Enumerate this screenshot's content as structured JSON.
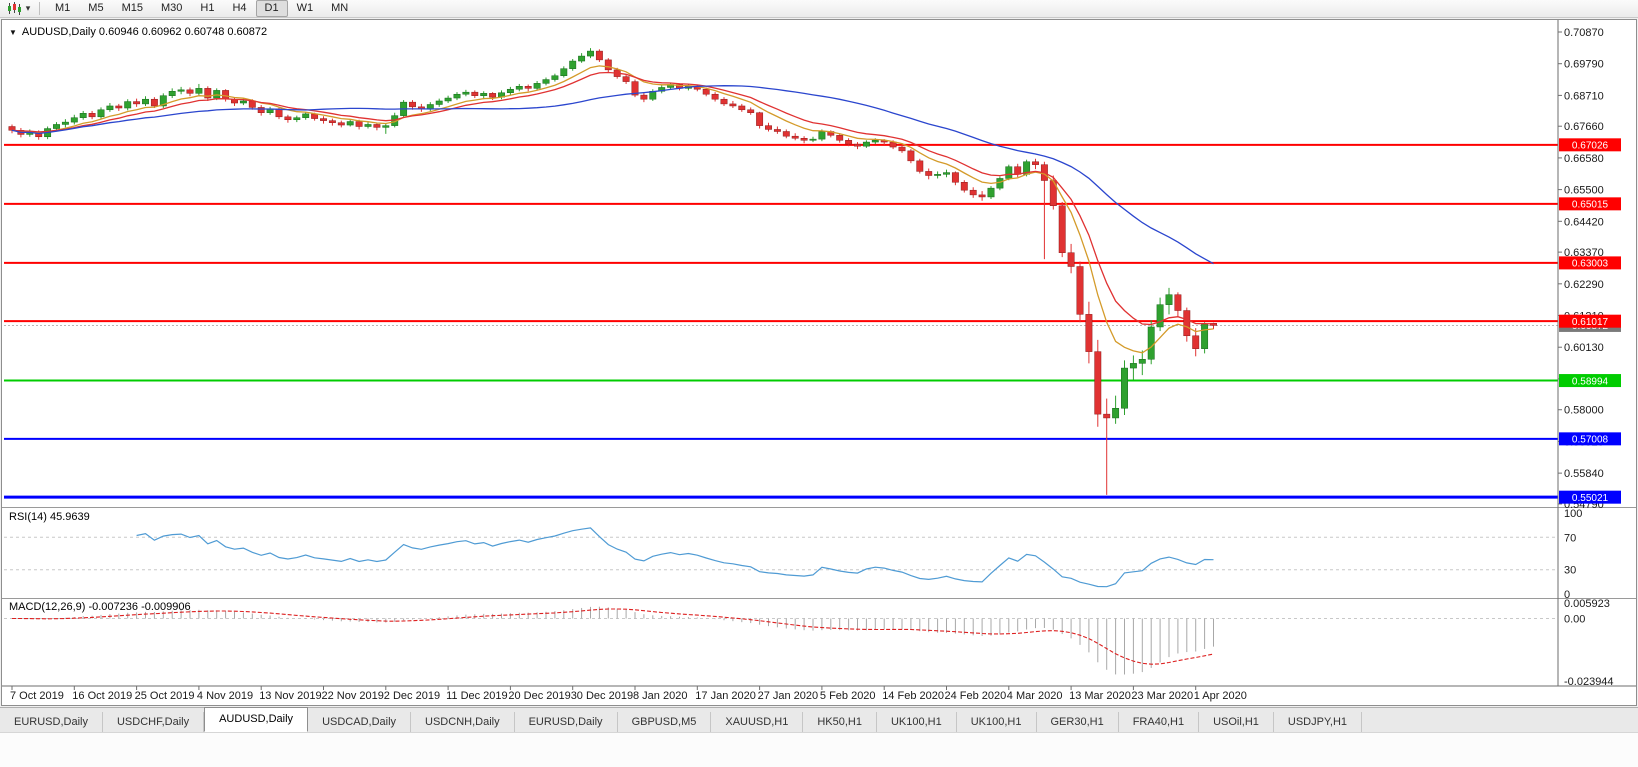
{
  "toolbar": {
    "timeframes": [
      "M1",
      "M5",
      "M15",
      "M30",
      "H1",
      "H4",
      "D1",
      "W1",
      "MN"
    ],
    "active": "D1"
  },
  "tabs": {
    "active_index": 2,
    "items": [
      "EURUSD,Daily",
      "USDCHF,Daily",
      "AUDUSD,Daily",
      "USDCAD,Daily",
      "USDCNH,Daily",
      "EURUSD,Daily",
      "GBPUSD,M5",
      "XAUUSD,H1",
      "HK50,H1",
      "UK100,H1",
      "UK100,H1",
      "GER30,H1",
      "FRA40,H1",
      "USOil,H1",
      "USDJPY,H1"
    ]
  },
  "chart_data": {
    "type": "candlestick",
    "symbol": "AUDUSD",
    "timeframe": "Daily",
    "title_line": "AUDUSD,Daily 0.60946 0.60962 0.60748 0.60872",
    "open": "0.60946",
    "high": "0.60962",
    "low": "0.60748",
    "close": "0.60872",
    "current_price": "0.60872",
    "colors": {
      "bull": "#2FA12F",
      "bear": "#E03232",
      "background": "#FFFFFF",
      "axis_text": "#1A1A1A"
    },
    "price_ticks": [
      "0.70870",
      "0.69790",
      "0.68710",
      "0.67660",
      "0.66580",
      "0.65500",
      "0.64420",
      "0.63370",
      "0.62290",
      "0.61210",
      "0.60130",
      "0.59050",
      "0.58000",
      "0.56920",
      "0.55840",
      "0.54790"
    ],
    "level_lines": [
      {
        "price": 0.67026,
        "label": "0.67026",
        "color": "#FF0000",
        "width": 2
      },
      {
        "price": 0.65015,
        "label": "0.65015",
        "color": "#FF0000",
        "width": 2
      },
      {
        "price": 0.63003,
        "label": "0.63003",
        "color": "#FF0000",
        "width": 2
      },
      {
        "price": 0.61017,
        "label": "0.61017",
        "color": "#FF0000",
        "width": 2
      },
      {
        "price": 0.58994,
        "label": "0.58994",
        "color": "#00CC00",
        "width": 2
      },
      {
        "price": 0.57008,
        "label": "0.57008",
        "color": "#0000FF",
        "width": 2
      },
      {
        "price": 0.55021,
        "label": "0.55021",
        "color": "#0000FF",
        "width": 3
      }
    ],
    "moving_averages": [
      {
        "period": 8,
        "method": "ema",
        "color": "#D49B2A"
      },
      {
        "period": 13,
        "method": "ema",
        "color": "#E03232"
      },
      {
        "period": 34,
        "method": "sma",
        "color": "#2B46CE"
      }
    ],
    "date_labels": [
      {
        "i": 0,
        "label": "7 Oct 2019"
      },
      {
        "i": 7,
        "label": "16 Oct 2019"
      },
      {
        "i": 14,
        "label": "25 Oct 2019"
      },
      {
        "i": 21,
        "label": "4 Nov 2019"
      },
      {
        "i": 28,
        "label": "13 Nov 2019"
      },
      {
        "i": 35,
        "label": "22 Nov 2019"
      },
      {
        "i": 42,
        "label": "2 Dec 2019"
      },
      {
        "i": 49,
        "label": "11 Dec 2019"
      },
      {
        "i": 56,
        "label": "20 Dec 2019"
      },
      {
        "i": 63,
        "label": "30 Dec 2019"
      },
      {
        "i": 70,
        "label": "8 Jan 2020"
      },
      {
        "i": 77,
        "label": "17 Jan 2020"
      },
      {
        "i": 84,
        "label": "27 Jan 2020"
      },
      {
        "i": 91,
        "label": "5 Feb 2020"
      },
      {
        "i": 98,
        "label": "14 Feb 2020"
      },
      {
        "i": 105,
        "label": "24 Feb 2020"
      },
      {
        "i": 112,
        "label": "4 Mar 2020"
      },
      {
        "i": 119,
        "label": "13 Mar 2020"
      },
      {
        "i": 126,
        "label": "23 Mar 2020"
      },
      {
        "i": 133,
        "label": "1 Apr 2020"
      }
    ],
    "rsi": {
      "label_text": "RSI(14) 45.9639",
      "period": 14,
      "levels": [
        70,
        30
      ],
      "axis_labels": [
        {
          "v": 100,
          "t": "100"
        },
        {
          "v": 70,
          "t": "70"
        },
        {
          "v": 30,
          "t": "30"
        },
        {
          "v": 0,
          "t": "0"
        }
      ],
      "color": "#4F9BD4",
      "range": [
        0,
        100
      ]
    },
    "macd": {
      "label_text": "MACD(12,26,9) -0.007236 -0.009906",
      "fast": 12,
      "slow": 26,
      "signal": 9,
      "max": 0.005923,
      "min": -0.023944,
      "axis_labels": [
        {
          "v": 0.005923,
          "t": "0.005923"
        },
        {
          "v": 0,
          "t": "0.00"
        },
        {
          "v": -0.023944,
          "t": "-0.023944"
        }
      ],
      "hist_color": "#A8A8A8",
      "signal_color": "#DD2020"
    },
    "candles": [
      [
        0.6765,
        0.6772,
        0.6742,
        0.6752
      ],
      [
        0.6752,
        0.676,
        0.6728,
        0.6738
      ],
      [
        0.6738,
        0.6755,
        0.673,
        0.6745
      ],
      [
        0.6745,
        0.6752,
        0.672,
        0.673
      ],
      [
        0.673,
        0.6765,
        0.6722,
        0.6758
      ],
      [
        0.6758,
        0.678,
        0.675,
        0.6772
      ],
      [
        0.6772,
        0.679,
        0.6762,
        0.678
      ],
      [
        0.678,
        0.6805,
        0.6772,
        0.6795
      ],
      [
        0.6795,
        0.6818,
        0.6788,
        0.681
      ],
      [
        0.681,
        0.6818,
        0.679,
        0.6798
      ],
      [
        0.6798,
        0.683,
        0.6792,
        0.6822
      ],
      [
        0.6822,
        0.6845,
        0.6815,
        0.6835
      ],
      [
        0.6835,
        0.6842,
        0.6818,
        0.6828
      ],
      [
        0.6828,
        0.6858,
        0.682,
        0.685
      ],
      [
        0.685,
        0.686,
        0.6832,
        0.6842
      ],
      [
        0.6842,
        0.6868,
        0.6835,
        0.6858
      ],
      [
        0.6858,
        0.6865,
        0.6828,
        0.6835
      ],
      [
        0.6835,
        0.6878,
        0.6828,
        0.687
      ],
      [
        0.687,
        0.6895,
        0.6862,
        0.6885
      ],
      [
        0.6885,
        0.69,
        0.6875,
        0.689
      ],
      [
        0.689,
        0.6898,
        0.6868,
        0.6878
      ],
      [
        0.6878,
        0.691,
        0.687,
        0.6895
      ],
      [
        0.6895,
        0.6902,
        0.6852,
        0.6862
      ],
      [
        0.6862,
        0.6895,
        0.6855,
        0.6888
      ],
      [
        0.6888,
        0.6892,
        0.685,
        0.6858
      ],
      [
        0.6858,
        0.6865,
        0.6835,
        0.6845
      ],
      [
        0.6845,
        0.6862,
        0.6838,
        0.6852
      ],
      [
        0.6852,
        0.6858,
        0.6822,
        0.683
      ],
      [
        0.683,
        0.6838,
        0.6802,
        0.6812
      ],
      [
        0.6812,
        0.6832,
        0.6805,
        0.6825
      ],
      [
        0.6825,
        0.683,
        0.679,
        0.6798
      ],
      [
        0.6798,
        0.6805,
        0.6778,
        0.6788
      ],
      [
        0.6788,
        0.6802,
        0.678,
        0.6795
      ],
      [
        0.6795,
        0.6815,
        0.6788,
        0.6808
      ],
      [
        0.6808,
        0.6812,
        0.6785,
        0.6792
      ],
      [
        0.6792,
        0.68,
        0.6775,
        0.6785
      ],
      [
        0.6785,
        0.6792,
        0.6768,
        0.6778
      ],
      [
        0.6778,
        0.6785,
        0.6762,
        0.677
      ],
      [
        0.677,
        0.679,
        0.6765,
        0.6782
      ],
      [
        0.6782,
        0.6788,
        0.6755,
        0.6765
      ],
      [
        0.6765,
        0.678,
        0.6758,
        0.6772
      ],
      [
        0.6772,
        0.6778,
        0.6752,
        0.6762
      ],
      [
        0.6762,
        0.6775,
        0.674,
        0.6768
      ],
      [
        0.6768,
        0.6812,
        0.6762,
        0.6802
      ],
      [
        0.6802,
        0.6855,
        0.6795,
        0.6848
      ],
      [
        0.6848,
        0.6855,
        0.6822,
        0.6832
      ],
      [
        0.6832,
        0.6842,
        0.6815,
        0.6825
      ],
      [
        0.6825,
        0.6848,
        0.6818,
        0.684
      ],
      [
        0.684,
        0.686,
        0.6832,
        0.6852
      ],
      [
        0.6852,
        0.687,
        0.6845,
        0.6862
      ],
      [
        0.6862,
        0.6882,
        0.6855,
        0.6875
      ],
      [
        0.6875,
        0.689,
        0.6868,
        0.6882
      ],
      [
        0.6882,
        0.6888,
        0.6862,
        0.687
      ],
      [
        0.687,
        0.6885,
        0.6858,
        0.6878
      ],
      [
        0.6878,
        0.6882,
        0.6855,
        0.6865
      ],
      [
        0.6865,
        0.6888,
        0.6858,
        0.688
      ],
      [
        0.688,
        0.69,
        0.6872,
        0.6892
      ],
      [
        0.6892,
        0.691,
        0.6885,
        0.6902
      ],
      [
        0.6902,
        0.6908,
        0.6885,
        0.6895
      ],
      [
        0.6895,
        0.692,
        0.6888,
        0.6912
      ],
      [
        0.6912,
        0.6932,
        0.6905,
        0.6925
      ],
      [
        0.6925,
        0.6945,
        0.6918,
        0.6938
      ],
      [
        0.6938,
        0.697,
        0.6932,
        0.6962
      ],
      [
        0.6962,
        0.6995,
        0.6955,
        0.6988
      ],
      [
        0.6988,
        0.7015,
        0.6982,
        0.7005
      ],
      [
        0.7005,
        0.7032,
        0.6998,
        0.7022
      ],
      [
        0.7022,
        0.7028,
        0.6985,
        0.6992
      ],
      [
        0.6992,
        0.6998,
        0.695,
        0.6958
      ],
      [
        0.6958,
        0.6965,
        0.6928,
        0.6935
      ],
      [
        0.6935,
        0.6942,
        0.691,
        0.6918
      ],
      [
        0.6918,
        0.6925,
        0.6865,
        0.6872
      ],
      [
        0.6872,
        0.688,
        0.6848,
        0.6858
      ],
      [
        0.6858,
        0.6892,
        0.6852,
        0.6885
      ],
      [
        0.6885,
        0.6905,
        0.6878,
        0.6898
      ],
      [
        0.6898,
        0.6915,
        0.6892,
        0.6908
      ],
      [
        0.6908,
        0.6912,
        0.6888,
        0.6895
      ],
      [
        0.6895,
        0.691,
        0.6888,
        0.6902
      ],
      [
        0.6902,
        0.6908,
        0.6885,
        0.6892
      ],
      [
        0.6892,
        0.6898,
        0.6868,
        0.6875
      ],
      [
        0.6875,
        0.6882,
        0.685,
        0.6858
      ],
      [
        0.6858,
        0.6865,
        0.6835,
        0.6842
      ],
      [
        0.6842,
        0.6852,
        0.6828,
        0.6835
      ],
      [
        0.6835,
        0.6842,
        0.6815,
        0.6822
      ],
      [
        0.6822,
        0.683,
        0.6805,
        0.6812
      ],
      [
        0.6812,
        0.6815,
        0.6758,
        0.6768
      ],
      [
        0.6768,
        0.6778,
        0.6748,
        0.6755
      ],
      [
        0.6755,
        0.6765,
        0.674,
        0.6748
      ],
      [
        0.6748,
        0.6755,
        0.6725,
        0.6732
      ],
      [
        0.6732,
        0.6742,
        0.6718,
        0.6725
      ],
      [
        0.6725,
        0.6732,
        0.6708,
        0.6718
      ],
      [
        0.6718,
        0.673,
        0.6712,
        0.6722
      ],
      [
        0.6722,
        0.6755,
        0.6715,
        0.6748
      ],
      [
        0.6748,
        0.6752,
        0.6728,
        0.6735
      ],
      [
        0.6735,
        0.6742,
        0.671,
        0.6718
      ],
      [
        0.6718,
        0.6725,
        0.6698,
        0.6705
      ],
      [
        0.6705,
        0.6712,
        0.6688,
        0.6698
      ],
      [
        0.6698,
        0.6718,
        0.6692,
        0.6712
      ],
      [
        0.6712,
        0.6725,
        0.6705,
        0.6718
      ],
      [
        0.6718,
        0.6722,
        0.6702,
        0.6712
      ],
      [
        0.6712,
        0.6718,
        0.6688,
        0.6695
      ],
      [
        0.6695,
        0.6702,
        0.6675,
        0.6682
      ],
      [
        0.6682,
        0.6688,
        0.664,
        0.6648
      ],
      [
        0.6648,
        0.6655,
        0.6605,
        0.6612
      ],
      [
        0.6612,
        0.6622,
        0.6585,
        0.6598
      ],
      [
        0.6598,
        0.6612,
        0.6588,
        0.6602
      ],
      [
        0.6602,
        0.6618,
        0.6592,
        0.6608
      ],
      [
        0.6608,
        0.6612,
        0.6565,
        0.6575
      ],
      [
        0.6575,
        0.6582,
        0.654,
        0.6548
      ],
      [
        0.6548,
        0.6558,
        0.6522,
        0.6532
      ],
      [
        0.6532,
        0.6545,
        0.6512,
        0.6525
      ],
      [
        0.6525,
        0.6562,
        0.6518,
        0.6555
      ],
      [
        0.6555,
        0.6595,
        0.6548,
        0.6588
      ],
      [
        0.6588,
        0.6635,
        0.6582,
        0.6628
      ],
      [
        0.6628,
        0.6638,
        0.6592,
        0.6602
      ],
      [
        0.6602,
        0.6652,
        0.6595,
        0.6645
      ],
      [
        0.6645,
        0.6655,
        0.662,
        0.6635
      ],
      [
        0.6635,
        0.6645,
        0.6313,
        0.6581
      ],
      [
        0.6581,
        0.6598,
        0.6482,
        0.6495
      ],
      [
        0.6495,
        0.6508,
        0.632,
        0.6335
      ],
      [
        0.6335,
        0.6365,
        0.6265,
        0.6288
      ],
      [
        0.6288,
        0.6305,
        0.6098,
        0.6125
      ],
      [
        0.6125,
        0.6168,
        0.5958,
        0.5998
      ],
      [
        0.5998,
        0.6038,
        0.5742,
        0.5785
      ],
      [
        0.5785,
        0.5838,
        0.551,
        0.5772
      ],
      [
        0.5772,
        0.5848,
        0.5752,
        0.5805
      ],
      [
        0.5805,
        0.5968,
        0.5782,
        0.5942
      ],
      [
        0.5942,
        0.5985,
        0.5902,
        0.5958
      ],
      [
        0.5958,
        0.6002,
        0.5918,
        0.5972
      ],
      [
        0.5972,
        0.6105,
        0.5955,
        0.6082
      ],
      [
        0.6082,
        0.6182,
        0.6068,
        0.6158
      ],
      [
        0.6158,
        0.6215,
        0.6125,
        0.6192
      ],
      [
        0.6192,
        0.62,
        0.6118,
        0.6138
      ],
      [
        0.6138,
        0.6148,
        0.6032,
        0.6052
      ],
      [
        0.6052,
        0.6078,
        0.5982,
        0.6008
      ],
      [
        0.6008,
        0.6098,
        0.5992,
        0.6092
      ],
      [
        0.60946,
        0.60962,
        0.60748,
        0.60872
      ]
    ]
  }
}
